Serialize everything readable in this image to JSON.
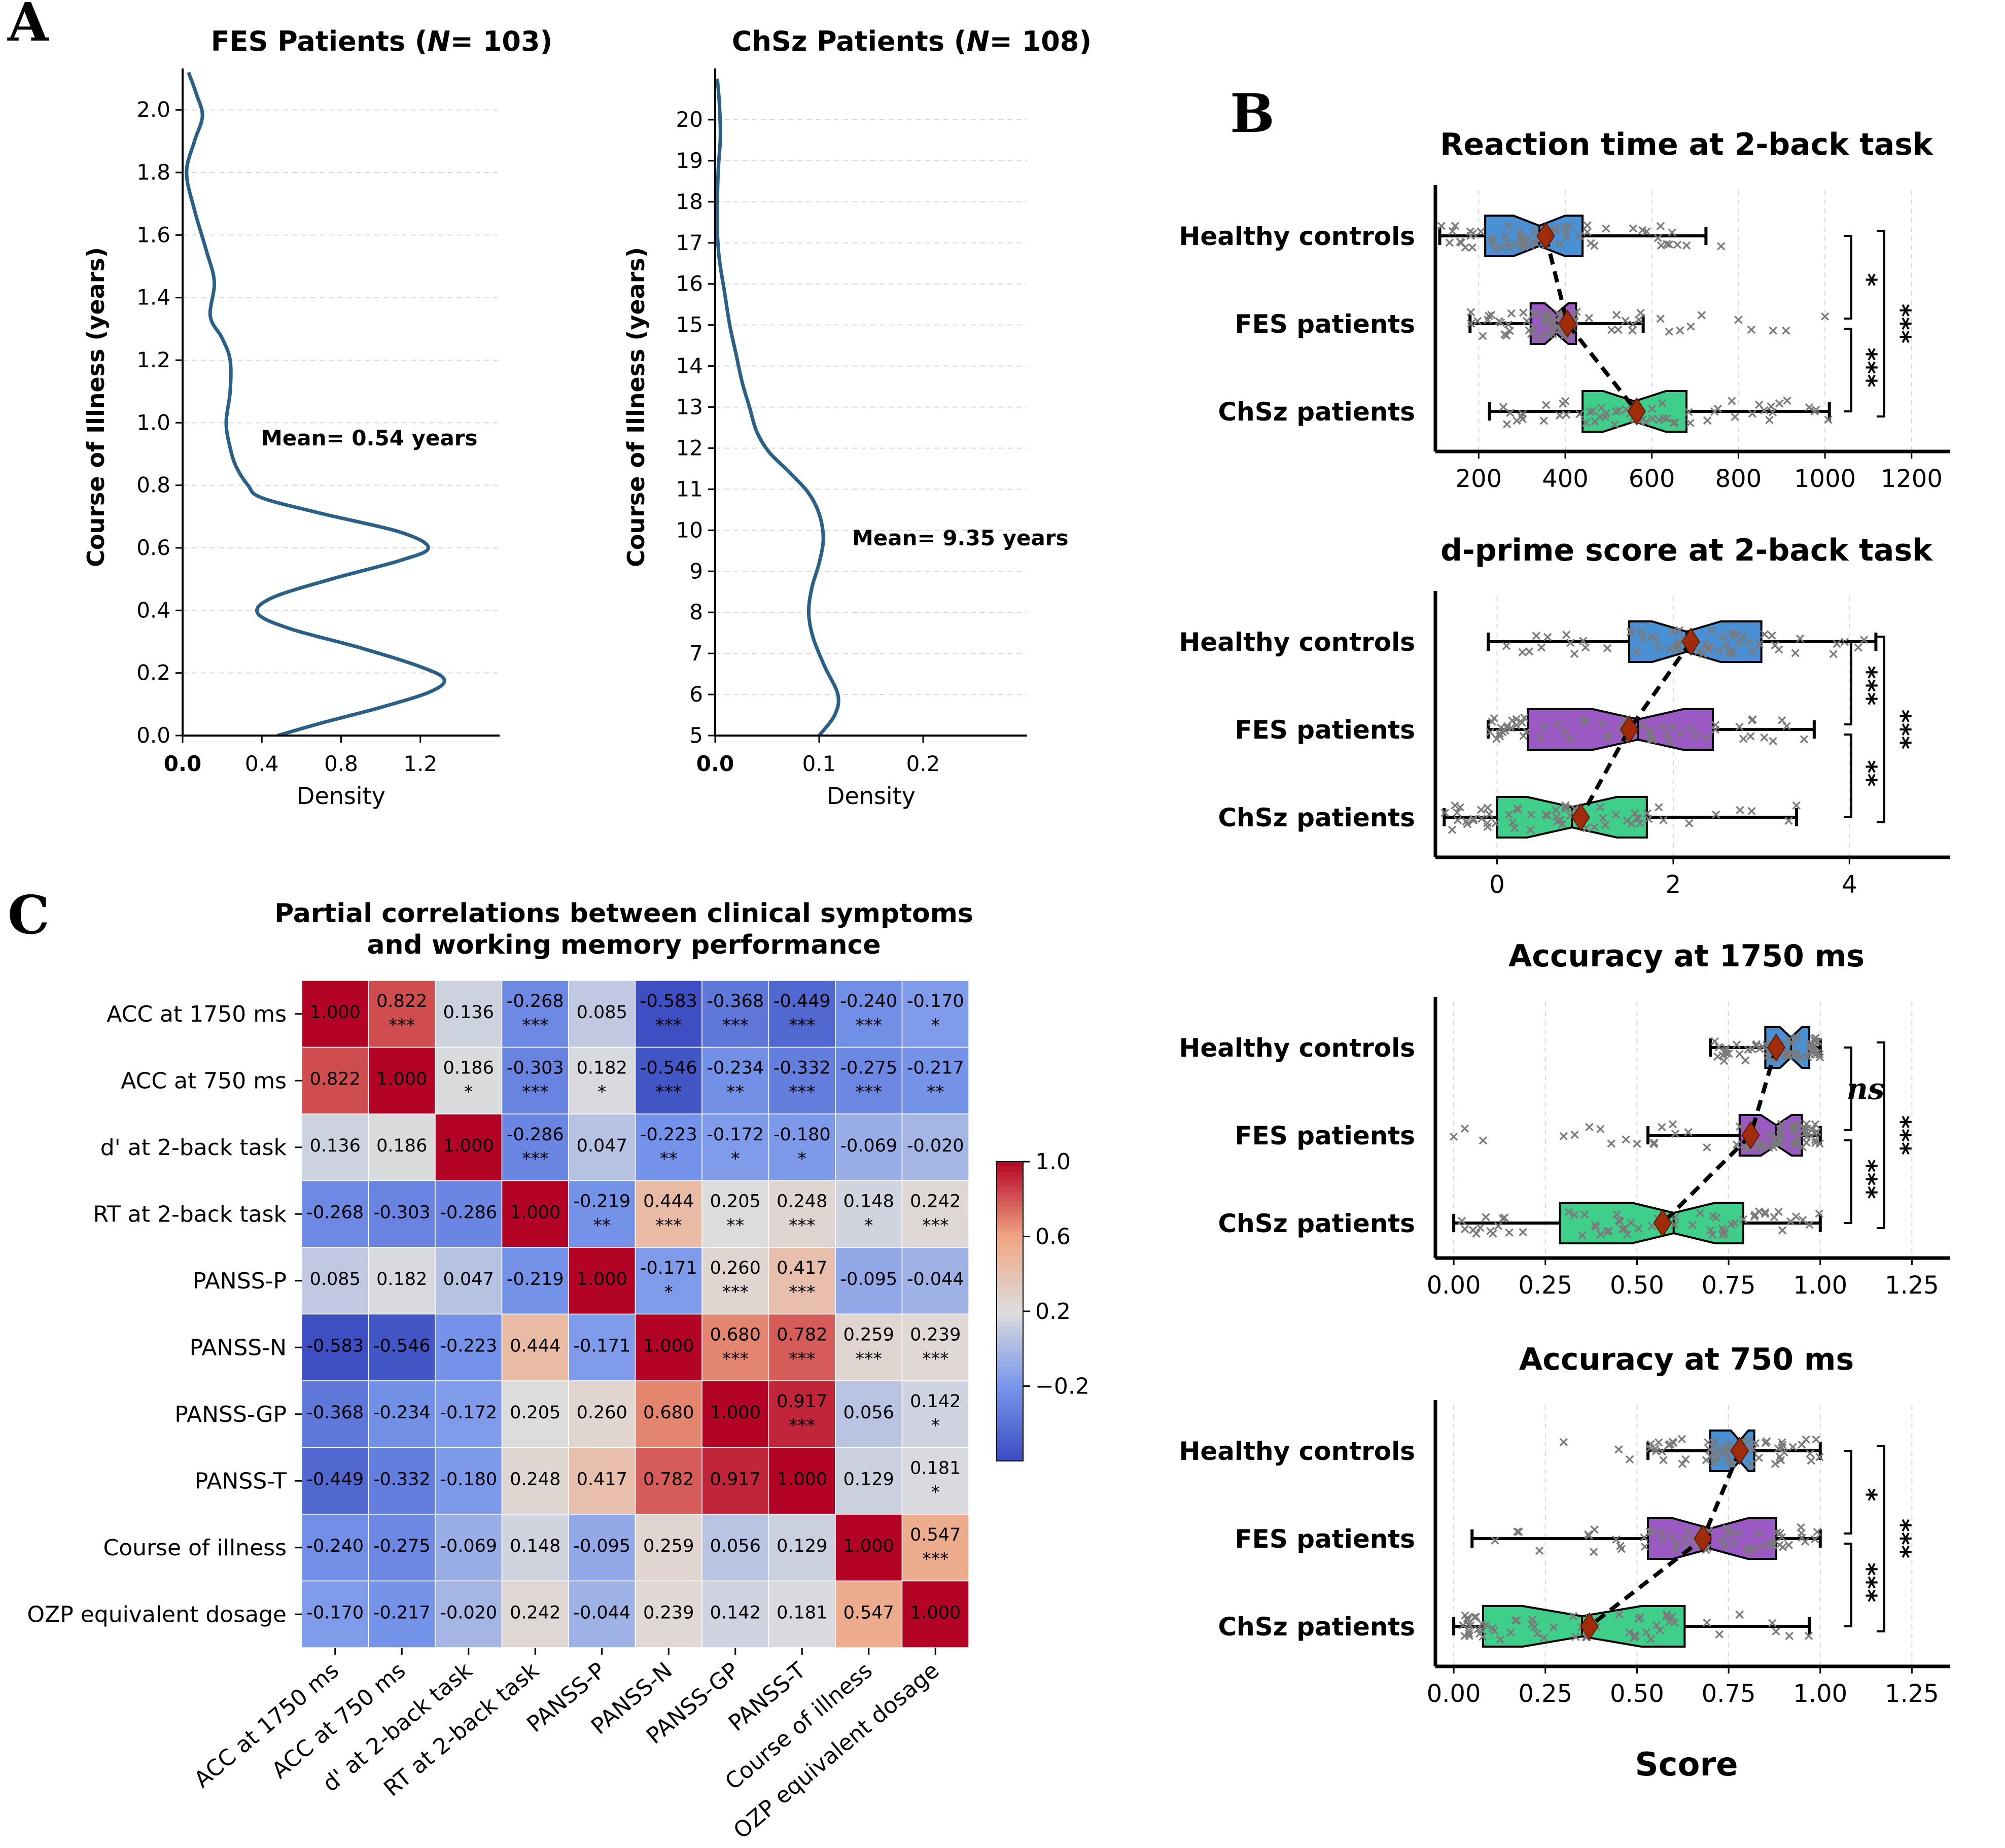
{
  "panel_letters": {
    "a": "A",
    "b": "B",
    "c": "C"
  },
  "colors": {
    "kde_line": "#2a5f88",
    "hc_box": "#4a90d4",
    "fes_box": "#9b59c4",
    "chsz_box": "#3fcf8a",
    "mean_marker": "#a02c0c",
    "points": "#7a7a7a",
    "grid": "#d9d9d9"
  },
  "chart_data": [
    {
      "id": "fes_kde",
      "type": "line",
      "title": "FES Patients (N= 103)",
      "title_parts": [
        "FES Patients (",
        "N",
        "= 103)"
      ],
      "xlabel": "Density",
      "ylabel": "Course of Illness (years)",
      "annotation": "Mean= 0.54 years",
      "xlim": [
        0,
        1.6
      ],
      "ylim": [
        0,
        2.1
      ],
      "xticks": [
        "0.0",
        "0.4",
        "0.8",
        "1.2"
      ],
      "yticks": [
        "0.0",
        "0.2",
        "0.4",
        "0.6",
        "0.8",
        "1.0",
        "1.2",
        "1.4",
        "1.6",
        "1.8",
        "2.0"
      ],
      "grid": "horizontal",
      "points": [
        [
          0.48,
          0.0
        ],
        [
          0.7,
          0.04
        ],
        [
          1.0,
          0.09
        ],
        [
          1.25,
          0.14
        ],
        [
          1.32,
          0.18
        ],
        [
          1.2,
          0.22
        ],
        [
          0.9,
          0.28
        ],
        [
          0.55,
          0.34
        ],
        [
          0.38,
          0.39
        ],
        [
          0.45,
          0.44
        ],
        [
          0.75,
          0.5
        ],
        [
          1.1,
          0.56
        ],
        [
          1.24,
          0.6
        ],
        [
          1.1,
          0.65
        ],
        [
          0.7,
          0.71
        ],
        [
          0.4,
          0.76
        ],
        [
          0.33,
          0.8
        ],
        [
          0.27,
          0.86
        ],
        [
          0.24,
          0.92
        ],
        [
          0.22,
          1.0
        ],
        [
          0.24,
          1.1
        ],
        [
          0.24,
          1.2
        ],
        [
          0.2,
          1.27
        ],
        [
          0.14,
          1.34
        ],
        [
          0.16,
          1.45
        ],
        [
          0.12,
          1.55
        ],
        [
          0.06,
          1.68
        ],
        [
          0.02,
          1.8
        ],
        [
          0.06,
          1.9
        ],
        [
          0.1,
          1.98
        ],
        [
          0.07,
          2.05
        ],
        [
          0.03,
          2.12
        ]
      ]
    },
    {
      "id": "chsz_kde",
      "type": "line",
      "title": "ChSz Patients (N= 108)",
      "title_parts": [
        "ChSz Patients (",
        "N",
        "= 108)"
      ],
      "xlabel": "Density",
      "ylabel": "Course of Illness (years)",
      "annotation": "Mean= 9.35 years",
      "xlim": [
        0,
        0.3
      ],
      "ylim": [
        5,
        21
      ],
      "xticks": [
        "0.0",
        "0.1",
        "0.2"
      ],
      "yticks": [
        "5",
        "6",
        "7",
        "8",
        "9",
        "10",
        "11",
        "12",
        "13",
        "14",
        "15",
        "16",
        "17",
        "18",
        "19",
        "20"
      ],
      "grid": "horizontal",
      "points": [
        [
          0.1,
          5.0
        ],
        [
          0.115,
          5.5
        ],
        [
          0.118,
          6.0
        ],
        [
          0.105,
          6.7
        ],
        [
          0.094,
          7.4
        ],
        [
          0.09,
          8.0
        ],
        [
          0.093,
          8.6
        ],
        [
          0.1,
          9.2
        ],
        [
          0.104,
          9.8
        ],
        [
          0.1,
          10.4
        ],
        [
          0.09,
          10.9
        ],
        [
          0.072,
          11.4
        ],
        [
          0.052,
          11.9
        ],
        [
          0.04,
          12.4
        ],
        [
          0.033,
          13.0
        ],
        [
          0.026,
          13.6
        ],
        [
          0.02,
          14.3
        ],
        [
          0.014,
          15.0
        ],
        [
          0.009,
          15.8
        ],
        [
          0.004,
          16.6
        ],
        [
          0.002,
          17.3
        ],
        [
          0.002,
          18.0
        ],
        [
          0.003,
          18.8
        ],
        [
          0.005,
          19.6
        ],
        [
          0.004,
          20.4
        ],
        [
          0.002,
          21.0
        ]
      ]
    },
    {
      "id": "rt_box",
      "type": "box",
      "title": "Reaction time at 2-back task",
      "xlim": [
        100,
        1260
      ],
      "xticks": [
        200,
        400,
        600,
        800,
        1000,
        1200
      ],
      "xtick_labels": [
        "200",
        "400",
        "600",
        "800",
        "1000",
        "1200"
      ],
      "categories": [
        "Healthy controls",
        "FES patients",
        "ChSz patients"
      ],
      "boxes": [
        {
          "whislo": 110,
          "q1": 215,
          "med": 340,
          "q3": 440,
          "whishi": 725,
          "mean": 355,
          "outliers": [
            760
          ]
        },
        {
          "whislo": 180,
          "q1": 320,
          "med": 380,
          "q3": 425,
          "whishi": 580,
          "mean": 405,
          "outliers": [
            620,
            640,
            665,
            690,
            715,
            800,
            830,
            880,
            910,
            1000
          ]
        },
        {
          "whislo": 225,
          "q1": 440,
          "med": 560,
          "q3": 680,
          "whishi": 1010,
          "mean": 565,
          "outliers": []
        }
      ],
      "significance": {
        "inner_top": "*",
        "inner_bottom": "***",
        "outer": "***"
      }
    },
    {
      "id": "dprime_box",
      "type": "box",
      "title": "d-prime score at 2-back task",
      "xlim": [
        -0.7,
        5.0
      ],
      "xticks": [
        0,
        2,
        4
      ],
      "xtick_labels": [
        "0",
        "2",
        "4"
      ],
      "categories": [
        "Healthy controls",
        "FES patients",
        "ChSz patients"
      ],
      "boxes": [
        {
          "whislo": -0.1,
          "q1": 1.5,
          "med": 2.15,
          "q3": 3.0,
          "whishi": 4.3,
          "mean": 2.2,
          "outliers": []
        },
        {
          "whislo": -0.1,
          "q1": 0.35,
          "med": 1.6,
          "q3": 2.45,
          "whishi": 3.6,
          "mean": 1.5,
          "outliers": []
        },
        {
          "whislo": -0.6,
          "q1": 0.0,
          "med": 0.85,
          "q3": 1.7,
          "whishi": 3.4,
          "mean": 0.95,
          "outliers": []
        }
      ],
      "significance": {
        "inner_top": "***",
        "inner_bottom": "**",
        "outer": "***"
      }
    },
    {
      "id": "acc1750_box",
      "type": "box",
      "title": "Accuracy at 1750 ms",
      "xlim": [
        -0.05,
        1.32
      ],
      "xticks": [
        0,
        0.25,
        0.5,
        0.75,
        1.0,
        1.25
      ],
      "xtick_labels": [
        "0.00",
        "0.25",
        "0.50",
        "0.75",
        "1.00",
        "1.25"
      ],
      "categories": [
        "Healthy controls",
        "FES patients",
        "ChSz patients"
      ],
      "boxes": [
        {
          "whislo": 0.7,
          "q1": 0.85,
          "med": 0.92,
          "q3": 0.97,
          "whishi": 1.0,
          "mean": 0.88,
          "outliers": [
            0.72,
            0.75,
            0.78
          ]
        },
        {
          "whislo": 0.53,
          "q1": 0.78,
          "med": 0.88,
          "q3": 0.95,
          "whishi": 1.0,
          "mean": 0.81,
          "outliers": [
            0.0,
            0.03,
            0.08,
            0.3,
            0.33,
            0.37,
            0.4,
            0.43,
            0.47,
            0.5
          ]
        },
        {
          "whislo": 0.0,
          "q1": 0.29,
          "med": 0.6,
          "q3": 0.79,
          "whishi": 1.0,
          "mean": 0.57,
          "outliers": []
        }
      ],
      "significance": {
        "inner_top": "ns",
        "inner_bottom": "***",
        "outer": "***"
      }
    },
    {
      "id": "acc750_box",
      "type": "box",
      "title": "Accuracy at 750 ms",
      "xlabel": "Score",
      "xlim": [
        -0.05,
        1.32
      ],
      "xticks": [
        0,
        0.25,
        0.5,
        0.75,
        1.0,
        1.25
      ],
      "xtick_labels": [
        "0.00",
        "0.25",
        "0.50",
        "0.75",
        "1.00",
        "1.25"
      ],
      "categories": [
        "Healthy controls",
        "FES patients",
        "ChSz patients"
      ],
      "boxes": [
        {
          "whislo": 0.53,
          "q1": 0.7,
          "med": 0.78,
          "q3": 0.82,
          "whishi": 1.0,
          "mean": 0.78,
          "outliers": [
            0.3,
            0.45,
            0.48
          ]
        },
        {
          "whislo": 0.05,
          "q1": 0.53,
          "med": 0.7,
          "q3": 0.88,
          "whishi": 1.0,
          "mean": 0.68,
          "outliers": []
        },
        {
          "whislo": 0.0,
          "q1": 0.08,
          "med": 0.35,
          "q3": 0.63,
          "whishi": 0.97,
          "mean": 0.37,
          "outliers": []
        }
      ],
      "significance": {
        "inner_top": "*",
        "inner_bottom": "***",
        "outer": "***"
      }
    },
    {
      "id": "partial_corr",
      "type": "heatmap",
      "title": "Partial correlations between clinical symptoms",
      "title_line2": "and working memory performance",
      "labels": [
        "ACC at 1750 ms",
        "ACC at 750 ms",
        "d' at 2-back task",
        "RT at 2-back task",
        "PANSS-P",
        "PANSS-N",
        "PANSS-GP",
        "PANSS-T",
        "Course of illness",
        "OZP equivalent dosage"
      ],
      "matrix": [
        [
          1.0,
          0.822,
          0.136,
          -0.268,
          0.085,
          -0.583,
          -0.368,
          -0.449,
          -0.24,
          -0.17
        ],
        [
          0.822,
          1.0,
          0.186,
          -0.303,
          0.182,
          -0.546,
          -0.234,
          -0.332,
          -0.275,
          -0.217
        ],
        [
          0.136,
          0.186,
          1.0,
          -0.286,
          0.047,
          -0.223,
          -0.172,
          -0.18,
          -0.069,
          -0.02
        ],
        [
          -0.268,
          -0.303,
          -0.286,
          1.0,
          -0.219,
          0.444,
          0.205,
          0.248,
          0.148,
          0.242
        ],
        [
          0.085,
          0.182,
          0.047,
          -0.219,
          1.0,
          -0.171,
          0.26,
          0.417,
          -0.095,
          -0.044
        ],
        [
          -0.583,
          -0.546,
          -0.223,
          0.444,
          -0.171,
          1.0,
          0.68,
          0.782,
          0.259,
          0.239
        ],
        [
          -0.368,
          -0.234,
          -0.172,
          0.205,
          0.26,
          0.68,
          1.0,
          0.917,
          0.056,
          0.142
        ],
        [
          -0.449,
          -0.332,
          -0.18,
          0.248,
          0.417,
          0.782,
          0.917,
          1.0,
          0.129,
          0.181
        ],
        [
          -0.24,
          -0.275,
          -0.069,
          0.148,
          -0.095,
          0.259,
          0.056,
          0.129,
          1.0,
          0.547
        ],
        [
          -0.17,
          -0.217,
          -0.02,
          0.242,
          -0.044,
          0.239,
          0.142,
          0.181,
          0.547,
          1.0
        ]
      ],
      "cell_labels": [
        [
          "1.000",
          "0.822",
          "0.136",
          "-0.268",
          "0.085",
          "-0.583",
          "-0.368",
          "-0.449",
          "-0.240",
          "-0.170"
        ],
        [
          "0.822",
          "1.000",
          "0.186",
          "-0.303",
          "0.182",
          "-0.546",
          "-0.234",
          "-0.332",
          "-0.275",
          "-0.217"
        ],
        [
          "0.136",
          "0.186",
          "1.000",
          "-0.286",
          "0.047",
          "-0.223",
          "-0.172",
          "-0.180",
          "-0.069",
          "-0.020"
        ],
        [
          "-0.268",
          "-0.303",
          "-0.286",
          "1.000",
          "-0.219",
          "0.444",
          "0.205",
          "0.248",
          "0.148",
          "0.242"
        ],
        [
          "0.085",
          "0.182",
          "0.047",
          "-0.219",
          "1.000",
          "-0.171",
          "0.260",
          "0.417",
          "-0.095",
          "-0.044"
        ],
        [
          "-0.583",
          "-0.546",
          "-0.223",
          "0.444",
          "-0.171",
          "1.000",
          "0.680",
          "0.782",
          "0.259",
          "0.239"
        ],
        [
          "-0.368",
          "-0.234",
          "-0.172",
          "0.205",
          "0.260",
          "0.680",
          "1.000",
          "0.917",
          "0.056",
          "0.142"
        ],
        [
          "-0.449",
          "-0.332",
          "-0.180",
          "0.248",
          "0.417",
          "0.782",
          "0.917",
          "1.000",
          "0.129",
          "0.181"
        ],
        [
          "-0.240",
          "-0.275",
          "-0.069",
          "0.148",
          "-0.095",
          "0.259",
          "0.056",
          "0.129",
          "1.000",
          "0.547"
        ],
        [
          "-0.170",
          "-0.217",
          "-0.020",
          "0.242",
          "-0.044",
          "0.239",
          "0.142",
          "0.181",
          "0.547",
          "1.000"
        ]
      ],
      "stars": [
        [
          "",
          "***",
          "",
          "***",
          "",
          "***",
          "***",
          "***",
          "***",
          "*"
        ],
        [
          "",
          "",
          "*",
          "***",
          "*",
          "***",
          "**",
          "***",
          "***",
          "**"
        ],
        [
          "",
          "",
          "",
          "***",
          "",
          "**",
          "*",
          "*",
          "",
          ""
        ],
        [
          "",
          "",
          "",
          "",
          "**",
          "***",
          "**",
          "***",
          "*",
          "***"
        ],
        [
          "",
          "",
          "",
          "",
          "",
          "*",
          "***",
          "***",
          "",
          ""
        ],
        [
          "",
          "",
          "",
          "",
          "",
          "",
          "***",
          "***",
          "***",
          "***"
        ],
        [
          "",
          "",
          "",
          "",
          "",
          "",
          "",
          "***",
          "",
          "*"
        ],
        [
          "",
          "",
          "",
          "",
          "",
          "",
          "",
          "",
          "",
          "*"
        ],
        [
          "",
          "",
          "",
          "",
          "",
          "",
          "",
          "",
          "",
          "***"
        ],
        [
          "",
          "",
          "",
          "",
          "",
          "",
          "",
          "",
          "",
          ""
        ]
      ],
      "colorbar_ticks": [
        1.0,
        0.6,
        0.2,
        -0.2
      ],
      "colorbar_tick_labels": [
        "1.0",
        "0.6",
        "0.2",
        "−0.2"
      ],
      "vmin": -0.6,
      "vmax": 1.0
    }
  ]
}
